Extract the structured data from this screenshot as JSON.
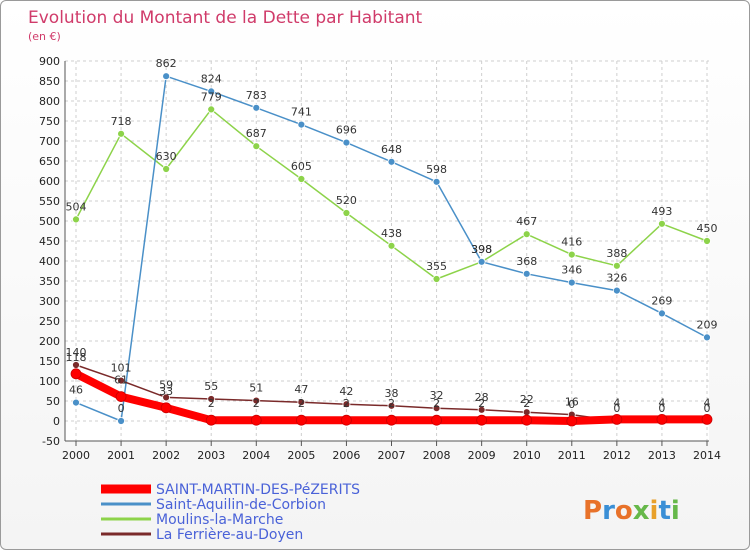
{
  "chart_data": {
    "type": "line",
    "title": "Evolution du Montant de la Dette par Habitant",
    "subtitle": "(en €)",
    "categories": [
      "2000",
      "2001",
      "2002",
      "2003",
      "2004",
      "2005",
      "2006",
      "2007",
      "2008",
      "2009",
      "2010",
      "2011",
      "2012",
      "2013",
      "2014"
    ],
    "ylim": [
      -50,
      900
    ],
    "yticks": [
      -50,
      0,
      50,
      100,
      150,
      200,
      250,
      300,
      350,
      400,
      450,
      500,
      550,
      600,
      650,
      700,
      750,
      800,
      850,
      900
    ],
    "grid": true,
    "legend_position": "bottom-left",
    "series": [
      {
        "name": "SAINT-MARTIN-DES-PéZERITS",
        "color": "#ff0000",
        "values": [
          118,
          61,
          33,
          2,
          2,
          2,
          2,
          2,
          2,
          2,
          2,
          0,
          4,
          4,
          4
        ]
      },
      {
        "name": "Saint-Aquilin-de-Corbion",
        "color": "#4a90c8",
        "values": [
          46,
          0,
          862,
          824,
          783,
          741,
          696,
          648,
          598,
          398,
          368,
          346,
          326,
          269,
          209
        ]
      },
      {
        "name": "Moulins-la-Marche",
        "color": "#8dd34a",
        "values": [
          504,
          718,
          630,
          779,
          687,
          605,
          520,
          438,
          355,
          398,
          467,
          416,
          388,
          493,
          450
        ]
      },
      {
        "name": "La Ferrière-au-Doyen",
        "color": "#7a2a2a",
        "values": [
          140,
          101,
          59,
          55,
          51,
          47,
          42,
          38,
          32,
          28,
          22,
          16,
          0,
          0,
          0
        ]
      }
    ]
  },
  "logo": {
    "text": "Proxiti"
  }
}
